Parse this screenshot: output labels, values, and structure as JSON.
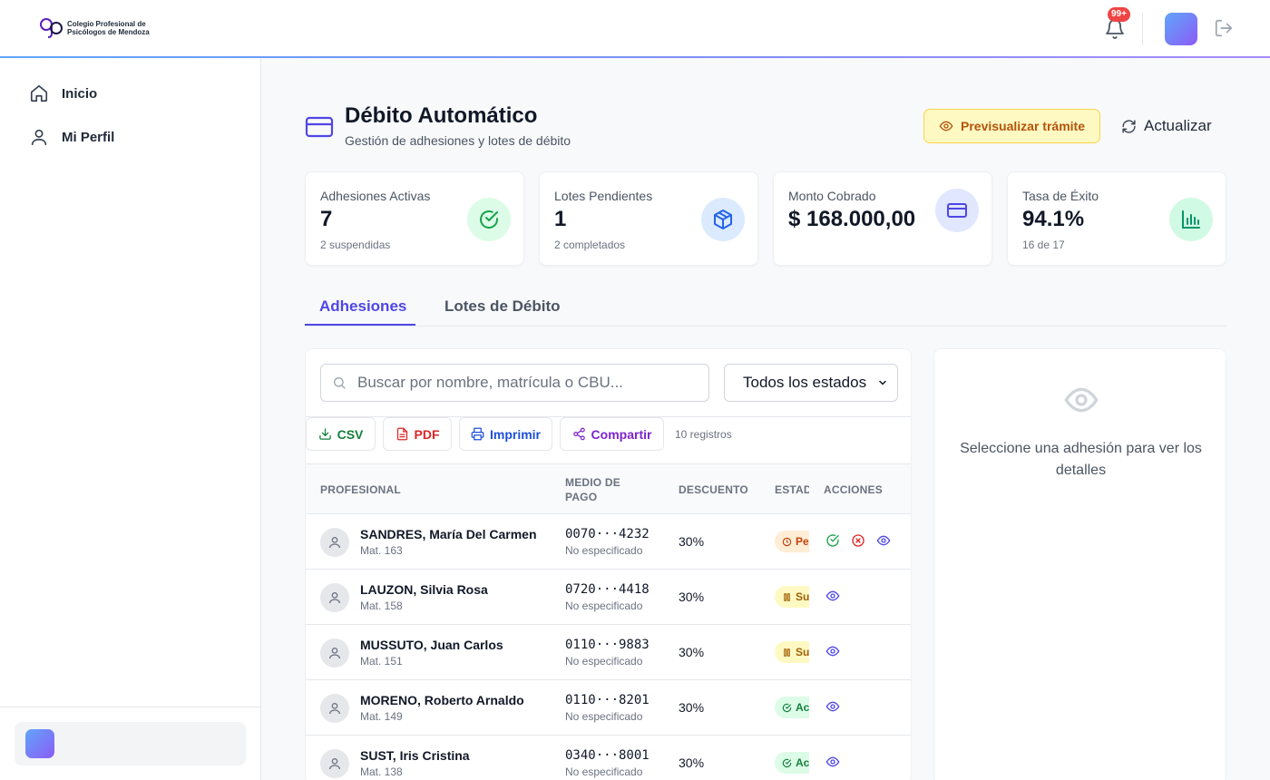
{
  "header": {
    "logo_line1": "Colegio Profesional de",
    "logo_line2": "Psicólogos de Mendoza",
    "notifications_badge": "99+"
  },
  "sidebar": {
    "items": [
      {
        "label": "Inicio",
        "icon": "home-icon"
      },
      {
        "label": "Mi Perfil",
        "icon": "user-icon"
      }
    ]
  },
  "page": {
    "title": "Débito Automático",
    "subtitle": "Gestión de adhesiones y lotes de débito",
    "preview_button": "Previsualizar trámite",
    "refresh_button": "Actualizar"
  },
  "stats": [
    {
      "label": "Adhesiones Activas",
      "value": "7",
      "sub": "2 suspendidas",
      "icon": "check-circle-icon",
      "color": "#16a34a",
      "bg": "#dcfce7"
    },
    {
      "label": "Lotes Pendientes",
      "value": "1",
      "sub": "2 completados",
      "icon": "package-icon",
      "color": "#2563eb",
      "bg": "#dbeafe"
    },
    {
      "label": "Monto Cobrado",
      "value": "$ 168.000,00",
      "sub": "",
      "icon": "credit-card-icon",
      "color": "#4f46e5",
      "bg": "#e0e7ff"
    },
    {
      "label": "Tasa de Éxito",
      "value": "94.1%",
      "sub": "16 de 17",
      "icon": "bar-chart-icon",
      "color": "#059669",
      "bg": "#d1fae5"
    }
  ],
  "tabs": [
    {
      "label": "Adhesiones",
      "active": true
    },
    {
      "label": "Lotes de Débito",
      "active": false
    }
  ],
  "list": {
    "search_placeholder": "Buscar por nombre, matrícula o CBU...",
    "filter_selected": "Todos los estados",
    "buttons": {
      "csv": "CSV",
      "pdf": "PDF",
      "print": "Imprimir",
      "share": "Compartir"
    },
    "records": "10 registros",
    "columns": {
      "profesional": "PROFESIONAL",
      "medio_line1": "MEDIO DE",
      "medio_line2": "PAGO",
      "descuento": "DESCUENTO",
      "estado": "ESTADO",
      "acciones": "ACCIONES"
    },
    "rows": [
      {
        "name": "SANDRES, María Del Carmen",
        "mat": "Mat. 163",
        "cbu": "0070···4232",
        "medio": "No especificado",
        "descuento": "30%",
        "estado": "Pendiente",
        "estado_type": "pending"
      },
      {
        "name": "LAUZON, Silvia Rosa",
        "mat": "Mat. 158",
        "cbu": "0720···4418",
        "medio": "No especificado",
        "descuento": "30%",
        "estado": "Suspendida",
        "estado_type": "suspended"
      },
      {
        "name": "MUSSUTO, Juan Carlos",
        "mat": "Mat. 151",
        "cbu": "0110···9883",
        "medio": "No especificado",
        "descuento": "30%",
        "estado": "Suspendida",
        "estado_type": "suspended"
      },
      {
        "name": "MORENO, Roberto Arnaldo",
        "mat": "Mat. 149",
        "cbu": "0110···8201",
        "medio": "No especificado",
        "descuento": "30%",
        "estado": "Activa",
        "estado_type": "active"
      },
      {
        "name": "SUST, Iris Cristina",
        "mat": "Mat. 138",
        "cbu": "0340···8001",
        "medio": "No especificado",
        "descuento": "30%",
        "estado": "Activa",
        "estado_type": "active"
      }
    ]
  },
  "detail": {
    "empty_message": "Seleccione una adhesión para ver los detalles"
  },
  "colors": {
    "primary": "#4f46e5",
    "pending_bg": "#ffedd5",
    "pending_fg": "#c2410c",
    "suspended_bg": "#fef9c3",
    "suspended_fg": "#a16207",
    "active_bg": "#dcfce7",
    "active_fg": "#15803d"
  }
}
